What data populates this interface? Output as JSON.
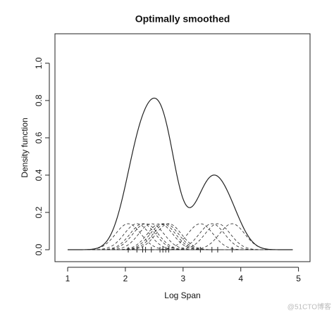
{
  "chart_data": {
    "type": "kde",
    "title": "Optimally smoothed",
    "x_label": "Log Span",
    "y_label": "Density function",
    "points": [
      2.05,
      2.2,
      2.3,
      2.35,
      2.45,
      2.6,
      2.65,
      2.7,
      2.75,
      3.3,
      3.5,
      3.6,
      3.85
    ],
    "bandwidth": 0.22,
    "xlim": [
      0.78,
      5.2
    ],
    "ylim": [
      -0.064,
      1.158
    ],
    "xticks": [
      1,
      2,
      3,
      4,
      5
    ],
    "yticks": [
      {
        "value": 0,
        "label": "0.0"
      },
      {
        "value": 0.2,
        "label": "0.2"
      },
      {
        "value": 0.4,
        "label": "0.4"
      },
      {
        "value": 0.6,
        "label": "0.6"
      },
      {
        "value": 0.8,
        "label": "0.8"
      },
      {
        "value": 1,
        "label": "1.0"
      }
    ],
    "color": "#222222",
    "watermark": "@51CTO博客"
  }
}
